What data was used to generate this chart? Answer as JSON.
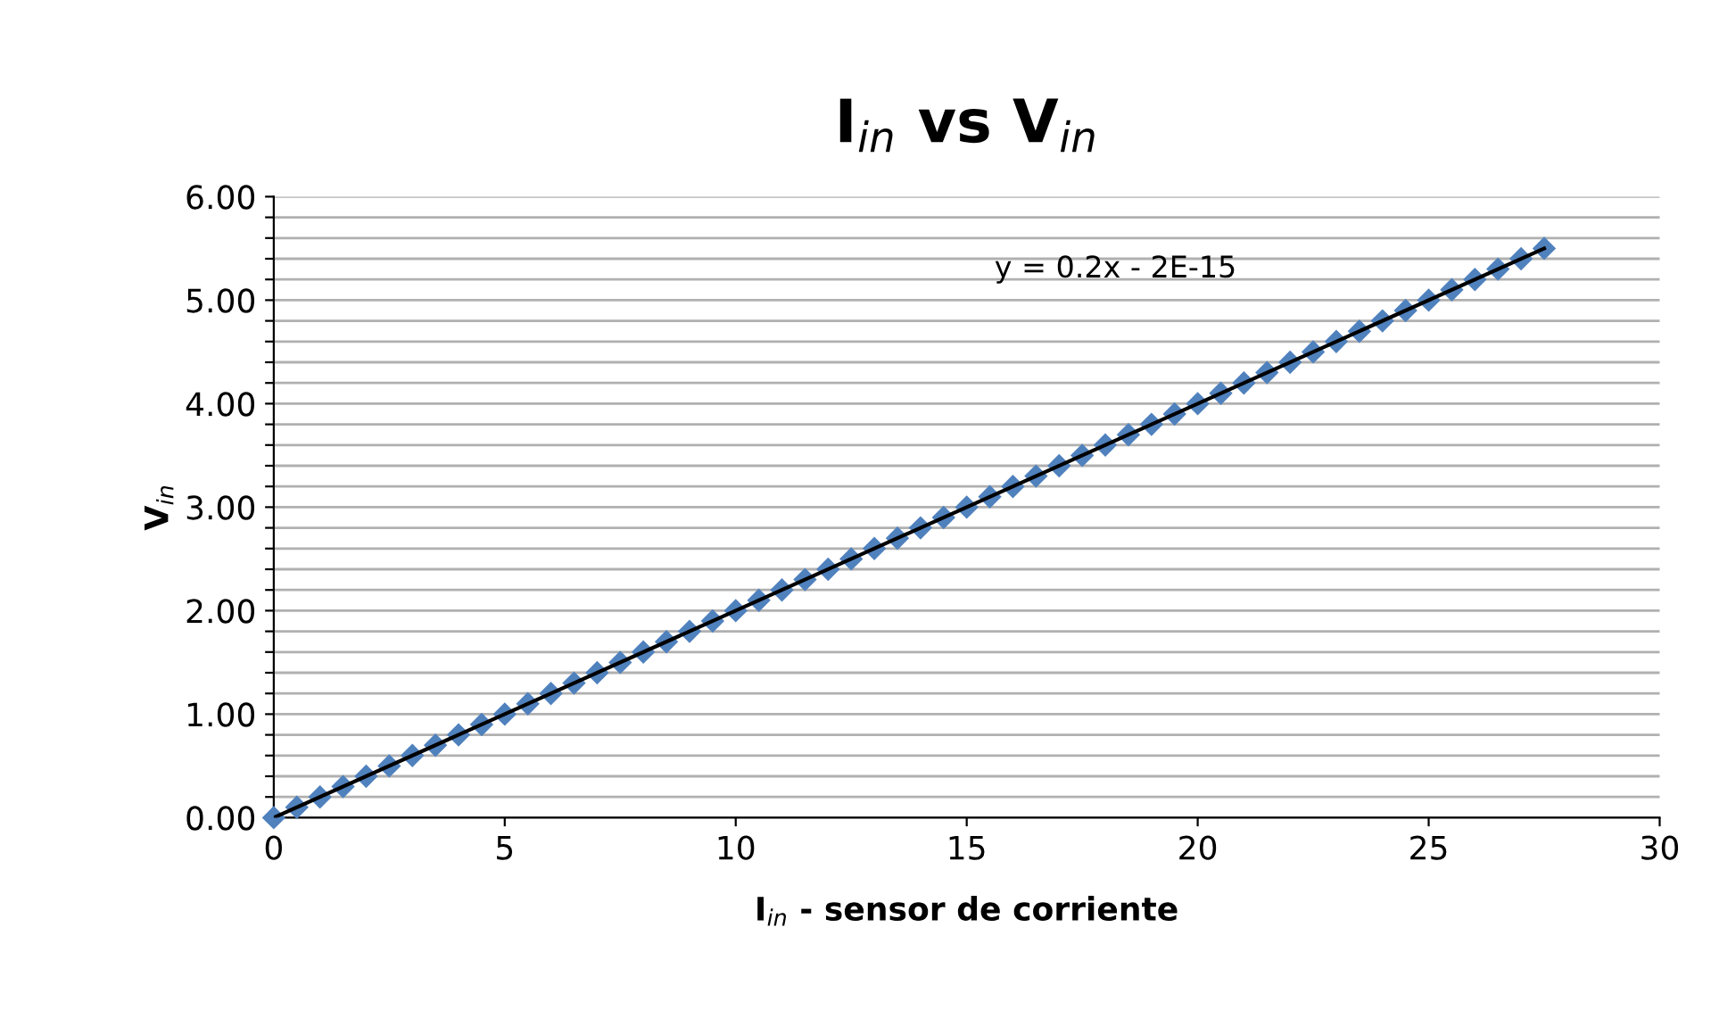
{
  "chart_data": {
    "type": "scatter",
    "title": "I$_{in}$ vs V$_{in}$",
    "xlabel": "I$_{in}$ - sensor de corriente",
    "ylabel": "V$_{in}$",
    "annotations": [
      "y = 0.2x - 2E-15"
    ],
    "series": [
      {
        "color": "#4f81bd",
        "marker": "diamond",
        "x": [
          0,
          0.5,
          1,
          1.5,
          2,
          2.5,
          3,
          3.5,
          4,
          4.5,
          5,
          5.5,
          6,
          6.5,
          7,
          7.5,
          8,
          8.5,
          9,
          9.5,
          10,
          10.5,
          11,
          11.5,
          12,
          12.5,
          13,
          13.5,
          14,
          14.5,
          15,
          15.5,
          16,
          16.5,
          17,
          17.5,
          18,
          18.5,
          19,
          19.5,
          20,
          20.5,
          21,
          21.5,
          22,
          22.5,
          23,
          23.5,
          24,
          24.5,
          25,
          25.5,
          26,
          26.5,
          27,
          27.5
        ],
        "values": [
          0,
          0.1,
          0.2,
          0.3,
          0.4,
          0.5,
          0.6,
          0.7,
          0.8,
          0.9,
          1,
          1.1,
          1.2,
          1.3,
          1.4,
          1.5,
          1.6,
          1.7,
          1.8,
          1.9,
          2,
          2.1,
          2.2,
          2.3,
          2.4,
          2.5,
          2.6,
          2.7,
          2.8,
          2.9,
          3,
          3.1,
          3.2,
          3.3,
          3.4,
          3.5,
          3.6,
          3.7,
          3.8,
          3.9,
          4,
          4.1,
          4.2,
          4.3,
          4.4,
          4.5,
          4.6,
          4.7,
          4.8,
          4.9,
          5,
          5.1,
          5.2,
          5.3,
          5.4,
          5.5
        ]
      },
      {
        "type": "line",
        "color": "#000000",
        "marker": "none",
        "line_style": "solid",
        "x": [
          0,
          27.5
        ],
        "values": [
          0,
          5.5
        ]
      }
    ],
    "xlim": [
      0,
      30
    ],
    "xticks": [
      0,
      5,
      10,
      15,
      20,
      25,
      30
    ],
    "ylim": [
      0,
      6
    ],
    "yticks": [
      {
        "value": 0,
        "label": "0.00"
      },
      {
        "value": 0.2,
        "label": null
      },
      {
        "value": 0.4,
        "label": null
      },
      {
        "value": 0.6,
        "label": null
      },
      {
        "value": 0.8,
        "label": null
      },
      {
        "value": 1,
        "label": "1.00"
      },
      {
        "value": 1.2,
        "label": null
      },
      {
        "value": 1.4,
        "label": null
      },
      {
        "value": 1.6,
        "label": null
      },
      {
        "value": 1.8,
        "label": null
      },
      {
        "value": 2,
        "label": "2.00"
      },
      {
        "value": 2.2,
        "label": null
      },
      {
        "value": 2.4,
        "label": null
      },
      {
        "value": 2.6,
        "label": null
      },
      {
        "value": 2.8,
        "label": null
      },
      {
        "value": 3,
        "label": "3.00"
      },
      {
        "value": 3.2,
        "label": null
      },
      {
        "value": 3.4,
        "label": null
      },
      {
        "value": 3.6,
        "label": null
      },
      {
        "value": 3.8,
        "label": null
      },
      {
        "value": 4,
        "label": "4.00"
      },
      {
        "value": 4.2,
        "label": null
      },
      {
        "value": 4.4,
        "label": null
      },
      {
        "value": 4.6,
        "label": null
      },
      {
        "value": 4.8,
        "label": null
      },
      {
        "value": 5,
        "label": "5.00"
      },
      {
        "value": 5.2,
        "label": null
      },
      {
        "value": 5.4,
        "label": null
      },
      {
        "value": 5.6,
        "label": null
      },
      {
        "value": 5.8,
        "label": null
      },
      {
        "value": 6,
        "label": "6.00"
      }
    ],
    "grid": "y",
    "legend": false
  }
}
